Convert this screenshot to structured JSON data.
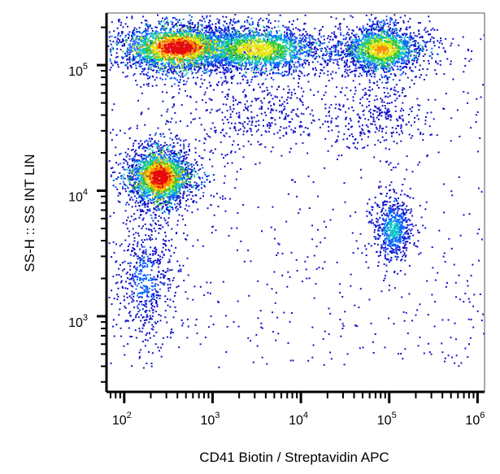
{
  "chart_data": {
    "type": "scatter",
    "subtype": "flow-cytometry density dot plot",
    "xlabel": "CD41 Biotin / Streptavidin APC",
    "ylabel": "SS-H :: SS INT LIN",
    "xscale": "log",
    "yscale": "log",
    "xlim": [
      63,
      1200000
    ],
    "ylim": [
      250,
      260000
    ],
    "x_ticks": [
      {
        "value": 100,
        "base": "10",
        "exp": "2"
      },
      {
        "value": 1000,
        "base": "10",
        "exp": "3"
      },
      {
        "value": 10000,
        "base": "10",
        "exp": "4"
      },
      {
        "value": 100000,
        "base": "10",
        "exp": "5"
      },
      {
        "value": 1000000,
        "base": "10",
        "exp": "6"
      }
    ],
    "y_ticks": [
      {
        "value": 1000,
        "base": "10",
        "exp": "3"
      },
      {
        "value": 10000,
        "base": "10",
        "exp": "4"
      },
      {
        "value": 100000,
        "base": "10",
        "exp": "5"
      }
    ],
    "grid": false,
    "legend": "none",
    "density_colormap": [
      "#1010c8",
      "#0a64ff",
      "#10c8c8",
      "#2ec83a",
      "#e6e614",
      "#ff8c00",
      "#e60a0a"
    ],
    "populations": [
      {
        "x_center": 400,
        "y_center": 140000,
        "x_spread_decades": 0.32,
        "y_spread_decades": 0.09,
        "count": 2600,
        "peak_density": 1.0
      },
      {
        "x_center": 3000,
        "y_center": 135000,
        "x_spread_decades": 0.38,
        "y_spread_decades": 0.09,
        "count": 2200,
        "peak_density": 0.7
      },
      {
        "x_center": 80000,
        "y_center": 135000,
        "x_spread_decades": 0.22,
        "y_spread_decades": 0.09,
        "count": 1700,
        "peak_density": 0.75
      },
      {
        "x_center": 250,
        "y_center": 13000,
        "x_spread_decades": 0.17,
        "y_spread_decades": 0.11,
        "count": 2400,
        "peak_density": 1.0
      },
      {
        "x_center": 170,
        "y_center": 2000,
        "x_spread_decades": 0.15,
        "y_spread_decades": 0.22,
        "count": 550,
        "peak_density": 0.2
      },
      {
        "x_center": 110000,
        "y_center": 5000,
        "x_spread_decades": 0.1,
        "y_spread_decades": 0.12,
        "count": 650,
        "peak_density": 0.35
      },
      {
        "x_center": 3000,
        "y_center": 40000,
        "x_spread_decades": 0.4,
        "y_spread_decades": 0.12,
        "count": 300,
        "peak_density": 0.1
      },
      {
        "x_center": 70000,
        "y_center": 40000,
        "x_spread_decades": 0.25,
        "y_spread_decades": 0.12,
        "count": 280,
        "peak_density": 0.1
      }
    ]
  }
}
